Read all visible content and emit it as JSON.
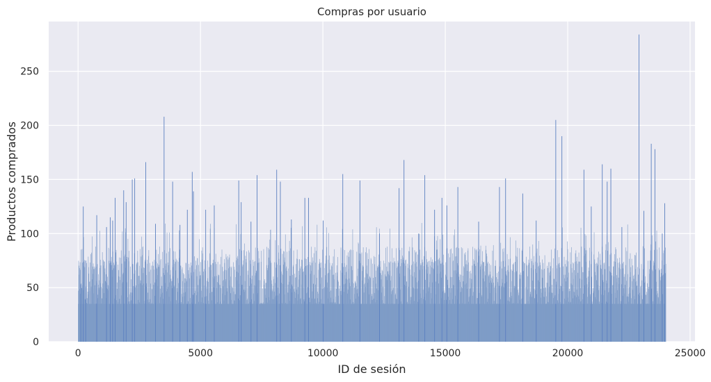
{
  "chart_data": {
    "type": "bar",
    "title": "Compras por usuario",
    "xlabel": "ID de sesión",
    "ylabel": "Productos comprados",
    "xlim": [
      -1200,
      25200
    ],
    "ylim": [
      0,
      296
    ],
    "x_ticks": [
      0,
      5000,
      10000,
      15000,
      20000,
      25000
    ],
    "y_ticks": [
      0,
      50,
      100,
      150,
      200,
      250
    ],
    "grid": true,
    "bar_color": "#7f9cc7",
    "peak_color": "#5a7fc0",
    "plot_background": "#eaeaf2",
    "grid_color": "#ffffff",
    "x_range_of_bars": [
      0,
      24000
    ],
    "typical_range": [
      35,
      75
    ],
    "peaks": [
      {
        "x": 100,
        "y": 53
      },
      {
        "x": 200,
        "y": 125
      },
      {
        "x": 300,
        "y": 75
      },
      {
        "x": 750,
        "y": 117
      },
      {
        "x": 1150,
        "y": 106
      },
      {
        "x": 1300,
        "y": 115
      },
      {
        "x": 1400,
        "y": 112
      },
      {
        "x": 1500,
        "y": 133
      },
      {
        "x": 1850,
        "y": 140
      },
      {
        "x": 1950,
        "y": 129
      },
      {
        "x": 2200,
        "y": 150
      },
      {
        "x": 2300,
        "y": 151
      },
      {
        "x": 2750,
        "y": 166
      },
      {
        "x": 3150,
        "y": 109
      },
      {
        "x": 3500,
        "y": 208
      },
      {
        "x": 3850,
        "y": 148
      },
      {
        "x": 4150,
        "y": 108
      },
      {
        "x": 4450,
        "y": 122
      },
      {
        "x": 4650,
        "y": 157
      },
      {
        "x": 4700,
        "y": 139
      },
      {
        "x": 5200,
        "y": 122
      },
      {
        "x": 5550,
        "y": 126
      },
      {
        "x": 6550,
        "y": 149
      },
      {
        "x": 6650,
        "y": 129
      },
      {
        "x": 7300,
        "y": 154
      },
      {
        "x": 7050,
        "y": 111
      },
      {
        "x": 8100,
        "y": 159
      },
      {
        "x": 8250,
        "y": 148
      },
      {
        "x": 8700,
        "y": 113
      },
      {
        "x": 9250,
        "y": 133
      },
      {
        "x": 9400,
        "y": 133
      },
      {
        "x": 10000,
        "y": 112
      },
      {
        "x": 10800,
        "y": 155
      },
      {
        "x": 11500,
        "y": 149
      },
      {
        "x": 12300,
        "y": 100
      },
      {
        "x": 13100,
        "y": 142
      },
      {
        "x": 13300,
        "y": 168
      },
      {
        "x": 13900,
        "y": 100
      },
      {
        "x": 14150,
        "y": 154
      },
      {
        "x": 14550,
        "y": 122
      },
      {
        "x": 14850,
        "y": 133
      },
      {
        "x": 15050,
        "y": 126
      },
      {
        "x": 15500,
        "y": 143
      },
      {
        "x": 16350,
        "y": 111
      },
      {
        "x": 17200,
        "y": 143
      },
      {
        "x": 17450,
        "y": 151
      },
      {
        "x": 18150,
        "y": 137
      },
      {
        "x": 18700,
        "y": 112
      },
      {
        "x": 19500,
        "y": 205
      },
      {
        "x": 19750,
        "y": 190
      },
      {
        "x": 20650,
        "y": 159
      },
      {
        "x": 20950,
        "y": 125
      },
      {
        "x": 21400,
        "y": 164
      },
      {
        "x": 21600,
        "y": 148
      },
      {
        "x": 21750,
        "y": 160
      },
      {
        "x": 22200,
        "y": 106
      },
      {
        "x": 22900,
        "y": 284
      },
      {
        "x": 23100,
        "y": 121
      },
      {
        "x": 23400,
        "y": 183
      },
      {
        "x": 23550,
        "y": 178
      },
      {
        "x": 23850,
        "y": 100
      },
      {
        "x": 23950,
        "y": 128
      }
    ]
  }
}
